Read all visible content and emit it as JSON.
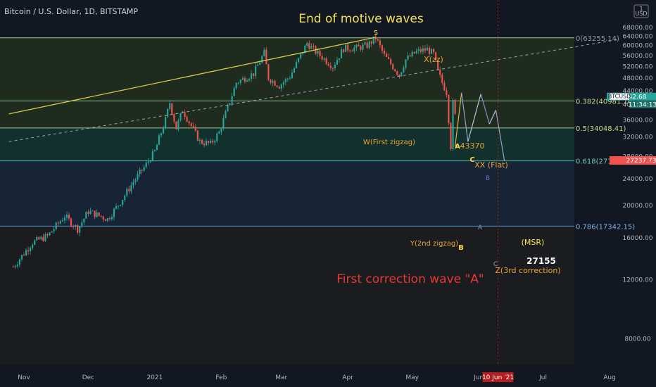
{
  "header": {
    "symbol_title": "Bitcoin / U.S. Dollar, 1D, BITSTAMP",
    "currency_badge": "USD"
  },
  "colors": {
    "background": "#131722",
    "bull": "#26a69a",
    "bear": "#ef5350",
    "fib_line": "#8fbf8f",
    "fib_green_zone": "#1e2b1e",
    "fib_teal_zone": "#12312d",
    "fib_blue_zone": "#172436",
    "fib_gray_zone": "#1b1c20",
    "trendline": "#d4c84a",
    "dashed_line": "#a0a3ab",
    "annotation_orange": "#e8a53a",
    "annotation_red": "#e53935",
    "annotation_yellow": "#f1e356",
    "price_tag_red": "#ef5350",
    "price_tag_gray": "#5d606b"
  },
  "chart_data": {
    "type": "candlestick",
    "title": "Bitcoin / U.S. Dollar, 1D, BITSTAMP",
    "currency": "USD",
    "y_scale": "log",
    "ylim": [
      7000,
      72000
    ],
    "x_ticks": [
      "Nov",
      "Dec",
      "2021",
      "Feb",
      "Mar",
      "Apr",
      "May",
      "Jun",
      "Jul",
      "Aug"
    ],
    "y_ticks": [
      8000,
      12000,
      16000,
      20000,
      24000,
      28000,
      32000,
      36000,
      40000,
      44000,
      48000,
      52000,
      56000,
      60000,
      64000,
      68000
    ],
    "current_price": "41342.68",
    "countdown": "11:34:13",
    "price_tag": "27237.73",
    "date_marker": "10 Jun '21",
    "price_path": [
      [
        "2020-10-27",
        13100
      ],
      [
        "2020-11-05",
        15500
      ],
      [
        "2020-11-12",
        16200
      ],
      [
        "2020-11-20",
        18600
      ],
      [
        "2020-11-26",
        17000
      ],
      [
        "2020-12-01",
        19200
      ],
      [
        "2020-12-10",
        18200
      ],
      [
        "2020-12-16",
        20500
      ],
      [
        "2020-12-22",
        23500
      ],
      [
        "2020-12-28",
        26500
      ],
      [
        "2021-01-01",
        29000
      ],
      [
        "2021-01-06",
        36000
      ],
      [
        "2021-01-08",
        40500
      ],
      [
        "2021-01-11",
        34000
      ],
      [
        "2021-01-14",
        38500
      ],
      [
        "2021-01-22",
        31000
      ],
      [
        "2021-01-27",
        30500
      ],
      [
        "2021-01-31",
        33000
      ],
      [
        "2021-02-08",
        46500
      ],
      [
        "2021-02-12",
        48000
      ],
      [
        "2021-02-16",
        49500
      ],
      [
        "2021-02-21",
        57000
      ],
      [
        "2021-02-23",
        48000
      ],
      [
        "2021-02-28",
        45500
      ],
      [
        "2021-03-05",
        48500
      ],
      [
        "2021-03-13",
        61000
      ],
      [
        "2021-03-17",
        57500
      ],
      [
        "2021-03-25",
        52000
      ],
      [
        "2021-03-30",
        58800
      ],
      [
        "2021-04-05",
        59000
      ],
      [
        "2021-04-10",
        60000
      ],
      [
        "2021-04-14",
        63255
      ],
      [
        "2021-04-18",
        56000
      ],
      [
        "2021-04-25",
        49000
      ],
      [
        "2021-04-28",
        54500
      ],
      [
        "2021-05-03",
        57500
      ],
      [
        "2021-05-08",
        58500
      ],
      [
        "2021-05-11",
        56500
      ],
      [
        "2021-05-13",
        50000
      ],
      [
        "2021-05-15",
        46500
      ],
      [
        "2021-05-17",
        43500
      ],
      [
        "2021-05-19",
        30000
      ],
      [
        "2021-05-20",
        40500
      ],
      [
        "2021-05-21",
        37000
      ]
    ],
    "projection_path": [
      [
        "2021-05-21",
        30000
      ],
      [
        "2021-05-24",
        43370
      ],
      [
        "2021-05-27",
        31000
      ],
      [
        "2021-06-02",
        43000
      ],
      [
        "2021-06-06",
        35000
      ],
      [
        "2021-06-09",
        38500
      ],
      [
        "2021-06-13",
        27155
      ]
    ],
    "fib_levels": [
      {
        "ratio": "0",
        "price": 63255.14,
        "label": "0(63255.14)"
      },
      {
        "ratio": "0.382",
        "price": 40981,
        "label": "0.382(40981.16)"
      },
      {
        "ratio": "0.5",
        "price": 34048.41,
        "label": "0.5(34048.41)"
      },
      {
        "ratio": "0.618",
        "price": 27155.62,
        "label": "0.618(27155.62)"
      },
      {
        "ratio": "0.786",
        "price": 17342.15,
        "label": "0.786(17342.15)"
      }
    ],
    "trendline": [
      [
        "2020-10-25",
        37500
      ],
      [
        "2021-04-14",
        63500
      ]
    ],
    "dashed_line": [
      [
        "2020-10-25",
        31000
      ],
      [
        "2021-08-05",
        62500
      ]
    ],
    "annotations": {
      "end_of_motive_waves": "End of motive waves",
      "wave_5": "5",
      "x_zz": "X(zz)",
      "w_first_zigzag": "W(First zigzag)",
      "a_label": "A",
      "a_value": "43370",
      "c_label": "C",
      "xx_flat": "XX (Flat)",
      "b_small": "B",
      "a_small": "A",
      "y_second_zigzag": "Y(2nd zigzag)",
      "b_label": "B",
      "msr": "(MSR)",
      "target": "27155",
      "c_small": "C",
      "z_third_correction": "Z(3rd correction)",
      "first_correction": "First correction wave \"A\""
    }
  }
}
